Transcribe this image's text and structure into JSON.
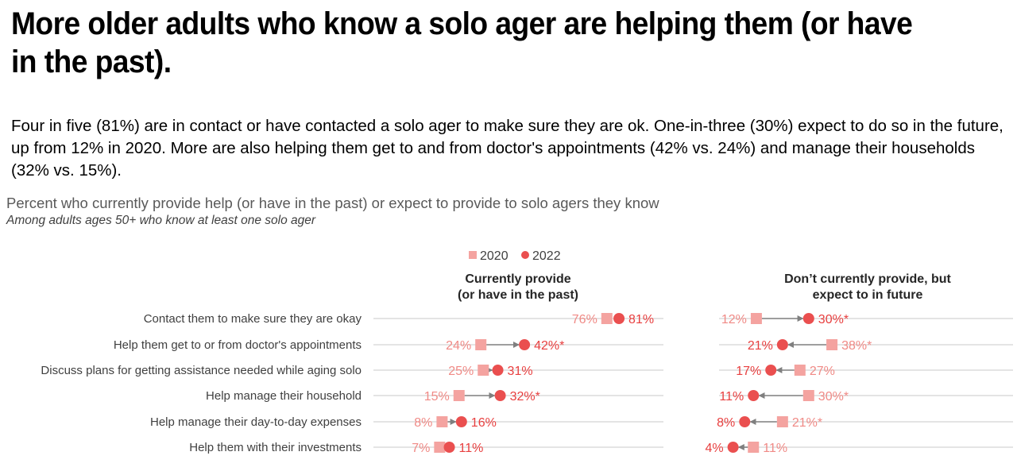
{
  "headline": "More older adults who know a solo ager are helping them (or have in the past).",
  "intro": "Four in five (81%) are in contact or have contacted a solo ager to make sure they are ok. One-in-three (30%) expect to do so in the future, up from 12% in 2020. More are also helping them get to and from doctor's appointments (42% vs. 24%) and manage their households (32% vs. 15%).",
  "chart_data": {
    "type": "dot",
    "title": "Percent who currently provide help (or have in the past) or expect to provide to solo agers they know",
    "note": "Among adults ages 50+ who know at least one solo ager",
    "legend": {
      "s2020": "2020",
      "s2022": "2022",
      "placement": "top-center"
    },
    "colors": {
      "s2020": "#f4a3a0",
      "s2022": "#ea4f4f",
      "label2020": "#f08a86",
      "label2022": "#e83f3f",
      "axis": "#c8c8c8",
      "arrow": "#7f7f7f",
      "rowlabel": "#404040"
    },
    "categories": [
      "Contact them to make sure they are okay",
      "Help them get to or from doctor's appointments",
      "Discuss plans for getting assistance needed while aging solo",
      "Help manage their household",
      "Help manage their day-to-day expenses",
      "Help them with their investments"
    ],
    "panels": [
      {
        "title": [
          "Currently provide",
          "(or have in the past)"
        ],
        "xlim": [
          0,
          100
        ],
        "values_2020": [
          76,
          24,
          25,
          15,
          8,
          7
        ],
        "values_2022": [
          81,
          42,
          31,
          32,
          16,
          11
        ],
        "labels_2020": [
          "76%",
          "24%",
          "25%",
          "15%",
          "8%",
          "7%"
        ],
        "labels_2022": [
          "81%",
          "42%*",
          "31%",
          "32%*",
          "16%",
          "11%"
        ]
      },
      {
        "title": [
          "Don’t currently provide, but",
          "expect to in future"
        ],
        "xlim": [
          0,
          100
        ],
        "values_2020": [
          12,
          38,
          27,
          30,
          21,
          11
        ],
        "values_2022": [
          30,
          21,
          17,
          11,
          8,
          4
        ],
        "labels_2020": [
          "12%",
          "38%*",
          "27%",
          "30%*",
          "21%*",
          "11%"
        ],
        "labels_2022": [
          "30%*",
          "21%",
          "17%",
          "11%",
          "8%",
          "4%"
        ]
      }
    ]
  }
}
